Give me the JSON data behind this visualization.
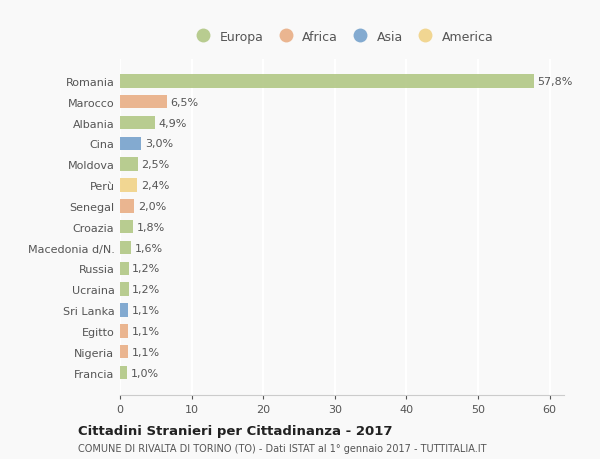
{
  "countries": [
    "Romania",
    "Marocco",
    "Albania",
    "Cina",
    "Moldova",
    "Perù",
    "Senegal",
    "Croazia",
    "Macedonia d/N.",
    "Russia",
    "Ucraina",
    "Sri Lanka",
    "Egitto",
    "Nigeria",
    "Francia"
  ],
  "values": [
    57.8,
    6.5,
    4.9,
    3.0,
    2.5,
    2.4,
    2.0,
    1.8,
    1.6,
    1.2,
    1.2,
    1.1,
    1.1,
    1.1,
    1.0
  ],
  "labels": [
    "57,8%",
    "6,5%",
    "4,9%",
    "3,0%",
    "2,5%",
    "2,4%",
    "2,0%",
    "1,8%",
    "1,6%",
    "1,2%",
    "1,2%",
    "1,1%",
    "1,1%",
    "1,1%",
    "1,0%"
  ],
  "continents": [
    "Europa",
    "Africa",
    "Europa",
    "Asia",
    "Europa",
    "America",
    "Africa",
    "Europa",
    "Europa",
    "Europa",
    "Europa",
    "Asia",
    "Africa",
    "Africa",
    "Europa"
  ],
  "continent_colors": {
    "Europa": "#adc47e",
    "Africa": "#e8a97e",
    "Asia": "#6e9dc9",
    "America": "#f0d080"
  },
  "legend_order": [
    "Europa",
    "Africa",
    "Asia",
    "America"
  ],
  "xlim": [
    0,
    62
  ],
  "xticks": [
    0,
    10,
    20,
    30,
    40,
    50,
    60
  ],
  "title1": "Cittadini Stranieri per Cittadinanza - 2017",
  "title2": "COMUNE DI RIVALTA DI TORINO (TO) - Dati ISTAT al 1° gennaio 2017 - TUTTITALIA.IT",
  "background_color": "#f9f9f9",
  "grid_color": "#ffffff",
  "label_fontsize": 8,
  "tick_fontsize": 8,
  "ylabel_fontsize": 8,
  "bar_height": 0.65,
  "alpha": 0.85
}
